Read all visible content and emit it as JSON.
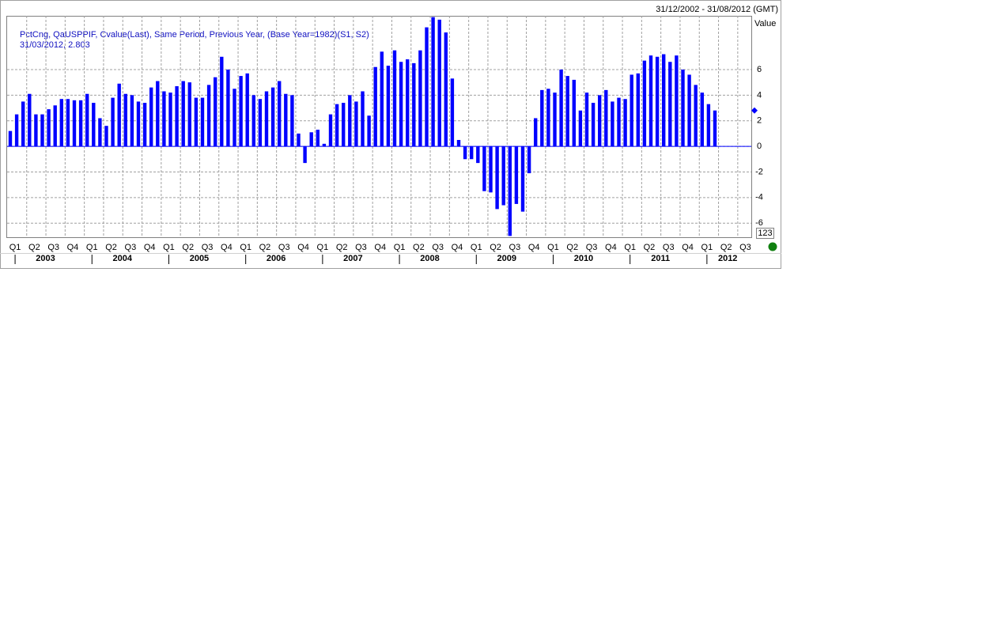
{
  "header": {
    "date_range": "31/12/2002 - 31/08/2012 (GMT)"
  },
  "chart_data": {
    "type": "bar",
    "title": "PctCng, QaUSPPIF, Cvalue(Last), Same Period, Previous Year, (Base Year=1982)(S1, S2)",
    "subtitle": "31/03/2012, 2.803",
    "y_axis_label": "Value",
    "scale_label": "123",
    "quarters": [
      "Q1",
      "Q2",
      "Q3",
      "Q4",
      "Q1",
      "Q2",
      "Q3",
      "Q4",
      "Q1",
      "Q2",
      "Q3",
      "Q4",
      "Q1",
      "Q2",
      "Q3",
      "Q4",
      "Q1",
      "Q2",
      "Q3",
      "Q4",
      "Q1",
      "Q2",
      "Q3",
      "Q4",
      "Q1",
      "Q2",
      "Q3",
      "Q4",
      "Q1",
      "Q2",
      "Q3",
      "Q4",
      "Q1",
      "Q2",
      "Q3",
      "Q4",
      "Q1",
      "Q2",
      "Q3"
    ],
    "years": [
      "2003",
      "2004",
      "2005",
      "2006",
      "2007",
      "2008",
      "2009",
      "2010",
      "2011",
      "2012"
    ],
    "values": [
      1.2,
      2.5,
      3.5,
      4.1,
      2.5,
      2.5,
      2.9,
      3.2,
      3.7,
      3.7,
      3.6,
      3.6,
      4.1,
      3.4,
      2.2,
      1.6,
      3.8,
      4.9,
      4.1,
      4.0,
      3.5,
      3.4,
      4.6,
      5.1,
      4.3,
      4.2,
      4.7,
      5.1,
      5.0,
      3.8,
      3.8,
      4.8,
      5.4,
      7.0,
      6.0,
      4.5,
      5.5,
      5.7,
      4.0,
      3.7,
      4.3,
      4.6,
      5.1,
      4.1,
      4.0,
      1.0,
      -1.3,
      1.1,
      1.3,
      0.2,
      2.5,
      3.3,
      3.4,
      4.0,
      3.5,
      4.3,
      2.4,
      6.2,
      7.4,
      6.3,
      7.5,
      6.6,
      6.8,
      6.5,
      7.5,
      9.3,
      10.1,
      9.9,
      8.9,
      5.3,
      0.5,
      -1.0,
      -1.0,
      -1.3,
      -3.5,
      -3.6,
      -4.9,
      -4.6,
      -7.0,
      -4.5,
      -5.1,
      -2.1,
      2.2,
      4.4,
      4.5,
      4.2,
      6.0,
      5.5,
      5.2,
      2.8,
      4.2,
      3.4,
      4.0,
      4.4,
      3.5,
      3.8,
      3.7,
      5.6,
      5.7,
      6.7,
      7.1,
      7.0,
      7.2,
      6.6,
      7.1,
      6.0,
      5.6,
      4.8,
      4.2,
      3.3,
      2.803
    ],
    "color": "#0000ff",
    "ylim": [
      -7.1,
      10.2
    ],
    "yticks": [
      -6,
      -4,
      -2,
      0,
      2,
      4,
      6
    ],
    "grid": true
  }
}
